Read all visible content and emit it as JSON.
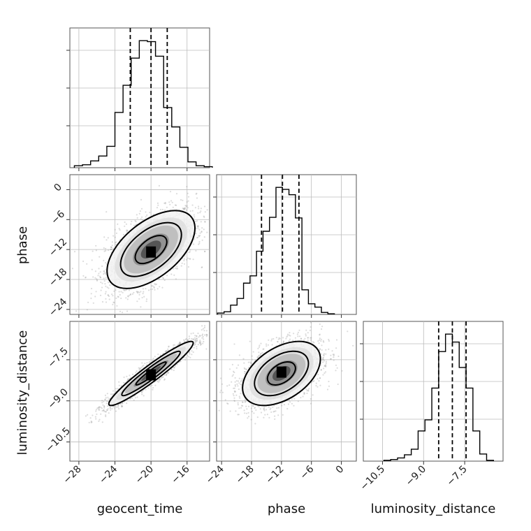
{
  "chart_data": {
    "type": "corner",
    "parameters": [
      "geocent_time",
      "phase",
      "luminosity_distance"
    ],
    "axis_labels": {
      "geocent_time": "geocent_time",
      "phase": "phase",
      "luminosity_distance": "luminosity_distance"
    },
    "grid": true,
    "ranges": {
      "geocent_time": [
        -29,
        -13.5
      ],
      "phase": [
        -25,
        3
      ],
      "luminosity_distance": [
        -11.2,
        -6.1
      ]
    },
    "ticks": {
      "geocent_time": [
        -28,
        -24,
        -20,
        -16
      ],
      "phase": [
        -24,
        -18,
        -12,
        -6,
        0
      ],
      "luminosity_distance": [
        -10.5,
        -9.0,
        -7.5
      ]
    },
    "tick_labels": {
      "geocent_time": [
        "−28",
        "−24",
        "−20",
        "−16"
      ],
      "phase": [
        "−24",
        "−18",
        "−12",
        "−6",
        "0"
      ],
      "luminosity_distance": [
        "−10.5",
        "−9.0",
        "−7.5"
      ]
    },
    "histograms": {
      "geocent_time": {
        "bins": [
          -28.5,
          -27.6,
          -26.7,
          -25.8,
          -24.9,
          -24.0,
          -23.1,
          -22.2,
          -21.3,
          -20.4,
          -19.5,
          -18.6,
          -17.7,
          -16.8,
          -15.9,
          -15.0,
          -14.1,
          -13.2
        ],
        "counts": [
          2,
          3,
          7,
          12,
          22,
          57,
          85,
          113,
          131,
          130,
          115,
          62,
          42,
          21,
          6,
          2,
          1
        ],
        "quantile_lines": [
          -22.3,
          -20.0,
          -18.2
        ]
      },
      "phase": {
        "bins": [
          -24.8,
          -23.5,
          -22.2,
          -20.9,
          -19.6,
          -18.3,
          -17.0,
          -15.7,
          -14.4,
          -13.1,
          -11.8,
          -10.5,
          -9.2,
          -7.9,
          -6.6,
          -5.3,
          -4.0,
          -2.7,
          -1.4
        ],
        "counts": [
          2,
          4,
          14,
          24,
          47,
          58,
          95,
          125,
          146,
          191,
          188,
          180,
          145,
          37,
          16,
          11,
          3,
          1
        ],
        "quantile_lines": [
          -16.0,
          -11.8,
          -8.5
        ]
      },
      "luminosity_distance": {
        "bins": [
          -10.45,
          -10.2,
          -9.95,
          -9.7,
          -9.45,
          -9.2,
          -8.95,
          -8.7,
          -8.45,
          -8.2,
          -7.95,
          -7.7,
          -7.45,
          -7.2,
          -6.95,
          -6.7,
          -6.45
        ],
        "counts": [
          1,
          2,
          4,
          8,
          15,
          38,
          52,
          92,
          138,
          160,
          150,
          118,
          92,
          38,
          9,
          1
        ],
        "quantile_lines": [
          -8.45,
          -7.95,
          -7.45
        ]
      }
    },
    "scatter_2d": [
      {
        "x": "geocent_time",
        "y": "phase",
        "mean": [
          -20.0,
          -12.0
        ],
        "sd": [
          2.5,
          4.0
        ],
        "correlation": 0.55,
        "peak": [
          -20.0,
          -12.5
        ]
      },
      {
        "x": "geocent_time",
        "y": "luminosity_distance",
        "mean": [
          -20.0,
          -8.0
        ],
        "sd": [
          2.4,
          0.6
        ],
        "correlation": 0.95,
        "peak": [
          -20.0,
          -8.05
        ]
      },
      {
        "x": "phase",
        "y": "luminosity_distance",
        "mean": [
          -12.0,
          -8.0
        ],
        "sd": [
          4.0,
          0.6
        ],
        "correlation": 0.45,
        "peak": [
          -12.0,
          -7.95
        ]
      }
    ]
  }
}
